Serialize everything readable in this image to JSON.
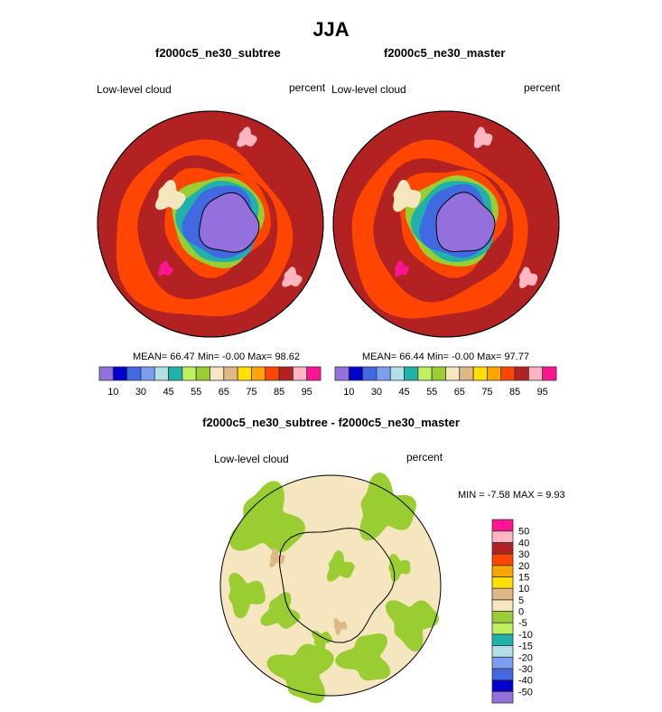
{
  "figure": {
    "title": "JJA",
    "panels": [
      {
        "title": "f2000c5_ne30_subtree",
        "left_label": "Low-level cloud",
        "right_label": "percent",
        "stats": "MEAN=  66.47  Min=  -0.00  Max=  98.62"
      },
      {
        "title": "f2000c5_ne30_master",
        "left_label": "Low-level cloud",
        "right_label": "percent",
        "stats": "MEAN=  66.44  Min=  -0.00  Max=  97.77"
      },
      {
        "title": "f2000c5_ne30_subtree - f2000c5_ne30_master",
        "left_label": "Low-level cloud",
        "right_label": "percent",
        "stats": "MIN =  -7.58 MAX =   9.93"
      }
    ],
    "colorbar_colors": [
      "#9370DB",
      "#0000CD",
      "#4169E1",
      "#7B9EF0",
      "#B0E0E6",
      "#20B2AA",
      "#C0F060",
      "#9ACD32",
      "#F5E6C0",
      "#DEB887",
      "#FFE000",
      "#FFA500",
      "#FF4500",
      "#B22222",
      "#FFB6C1",
      "#FF1493"
    ],
    "abs_colorbar_labels": [
      "10",
      "30",
      "45",
      "55",
      "65",
      "75",
      "85",
      "95"
    ],
    "diff_colorbar_labels": [
      "-50",
      "-40",
      "-30",
      "-20",
      "-15",
      "-10",
      "-5",
      "0",
      "5",
      "10",
      "15",
      "20",
      "30",
      "40",
      "50"
    ],
    "coastline_color": "#000000"
  }
}
